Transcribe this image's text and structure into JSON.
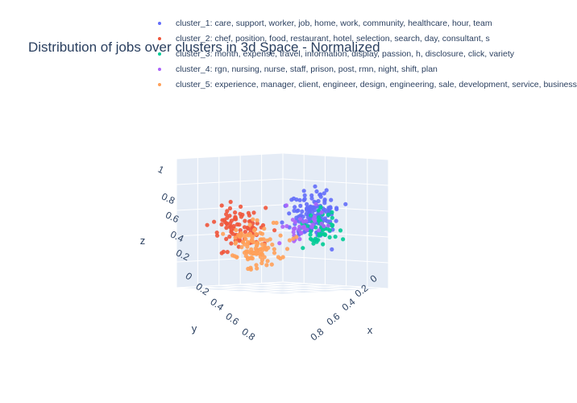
{
  "chart_data": {
    "type": "scatter",
    "subtype": "3d",
    "title": "Distribution of jobs over clusters in 3d Space - Normalized",
    "axes": {
      "x": {
        "label": "x",
        "ticks": [
          "0",
          "0.2",
          "0.4",
          "0.6",
          "0.8"
        ]
      },
      "y": {
        "label": "y",
        "ticks": [
          "0",
          "0.2",
          "0.4",
          "0.6",
          "0.8"
        ]
      },
      "z": {
        "label": "z",
        "ticks": [
          "0",
          "0.2",
          "0.4",
          "0.6",
          "0.8",
          "1"
        ]
      }
    },
    "grid": true,
    "legend_position": "top",
    "series": [
      {
        "name": "cluster_1: care, support, worker, job, home, work, community, healthcare, hour, team",
        "color": "#636efa"
      },
      {
        "name": "cluster_2: chef, position, food, restaurant, hotel, selection, search, day, consultant, s",
        "color": "#ef553b"
      },
      {
        "name": "cluster_3: month, expense, travel, information, display, passion, h, disclosure, click, variety",
        "color": "#00cc96"
      },
      {
        "name": "cluster_4: rgn, nursing, nurse, staff, prison, post, rmn, night, shift, plan",
        "color": "#ab63fa"
      },
      {
        "name": "cluster_5: experience, manager, client, engineer, design, engineering, sale, development, service, business",
        "color": "#ffa15a"
      }
    ]
  }
}
